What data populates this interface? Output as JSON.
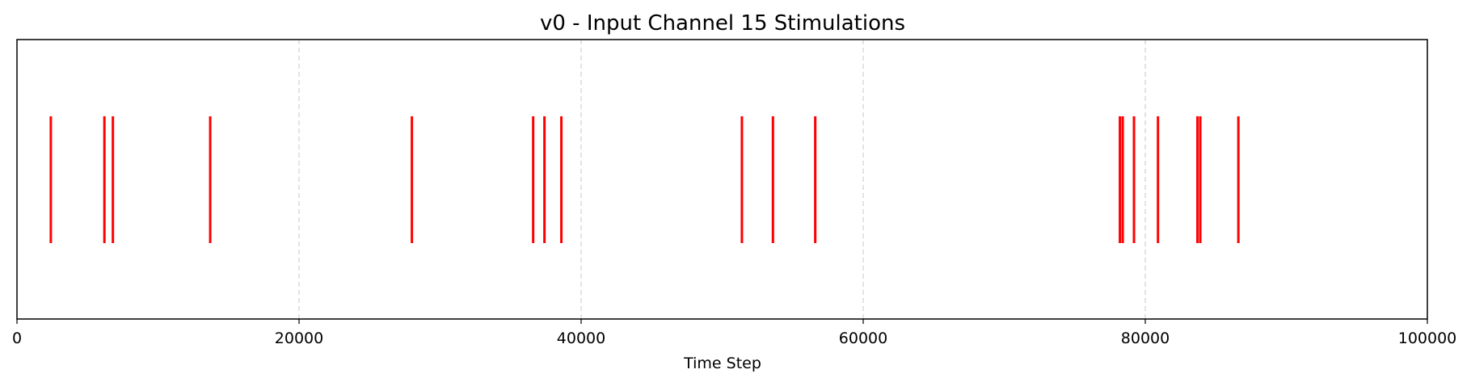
{
  "chart_data": {
    "type": "event",
    "title": "v0 - Input Channel 15 Stimulations",
    "xlabel": "Time Step",
    "ylabel": "",
    "xlim": [
      0,
      100000
    ],
    "x_ticks": [
      0,
      20000,
      40000,
      60000,
      80000,
      100000
    ],
    "x_tick_labels": [
      "0",
      "20000",
      "40000",
      "60000",
      "80000",
      "100000"
    ],
    "grid": "vertical dashed at major x ticks",
    "series": [
      {
        "color": "#ff0000",
        "events": [
          2400,
          6200,
          6800,
          13700,
          28000,
          36600,
          37400,
          38600,
          51400,
          53600,
          56600,
          78200,
          78400,
          79200,
          80900,
          83700,
          83900,
          86600
        ]
      }
    ]
  }
}
